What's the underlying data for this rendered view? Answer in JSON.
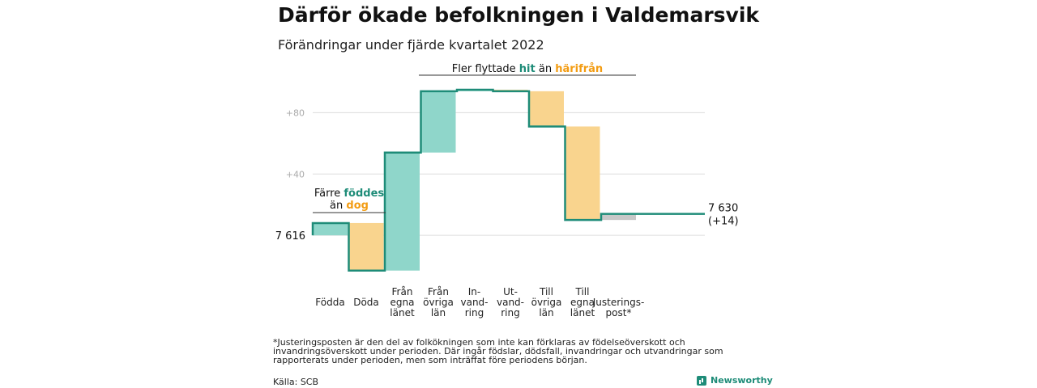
{
  "title": "Därför ökade befolkningen i Valdemarsvik",
  "subtitle": "Förändringar under fjärde kvartalet 2022",
  "footnote": "*Justeringsposten är den del av folkökningen som inte kan förklaras av födelseöverskott och invandringsöverskott under perioden. Där ingår födslar, dödsfall, invandringar och utvandringar som rapporterats under perioden, men som inträffat före periodens början.",
  "source": "Källa: SCB",
  "brand": "Newsworthy",
  "colors": {
    "line": "#1e8c78",
    "increase": "#8fd6ca",
    "decrease": "#f9d48e",
    "adjustment": "#c8c8c8",
    "hit": "#1e8c78",
    "harifran": "#f39c12",
    "grid": "#dddddd"
  },
  "chart_data": {
    "type": "waterfall",
    "y_ticks": [
      {
        "value": 40,
        "label": "+40"
      },
      {
        "value": 80,
        "label": "+80"
      }
    ],
    "ylim": [
      -30,
      105
    ],
    "start": {
      "value": 0,
      "label": "7 616"
    },
    "end": {
      "value": 14,
      "label": "7 630",
      "change_label": "(+14)"
    },
    "categories": [
      {
        "label": [
          "",
          "Födda"
        ],
        "change": 8,
        "kind": "increase"
      },
      {
        "label": [
          "",
          "Döda"
        ],
        "change": -31,
        "kind": "decrease"
      },
      {
        "label": [
          "Från",
          "egna",
          "länet"
        ],
        "change": 77,
        "kind": "increase"
      },
      {
        "label": [
          "Från",
          "övriga",
          "län"
        ],
        "change": 40,
        "kind": "increase"
      },
      {
        "label": [
          "In-",
          "vand-",
          "ring"
        ],
        "change": 1,
        "kind": "increase"
      },
      {
        "label": [
          "Ut-",
          "vand-",
          "ring"
        ],
        "change": -1,
        "kind": "decrease"
      },
      {
        "label": [
          "Till",
          "övriga",
          "län"
        ],
        "change": -23,
        "kind": "decrease"
      },
      {
        "label": [
          "Till",
          "egna",
          "länet"
        ],
        "change": -61,
        "kind": "decrease"
      },
      {
        "label": [
          "",
          "Justerings-",
          "post*"
        ],
        "change": 4,
        "kind": "adjustment"
      }
    ],
    "annotations": {
      "left": {
        "line1": "Färre",
        "hl1": "föddes",
        "line2": "än",
        "hl2": "dog"
      },
      "right": {
        "text1": "Fler flyttade",
        "hl1": "hit",
        "text2": "än",
        "hl2": "härifrån"
      }
    }
  }
}
